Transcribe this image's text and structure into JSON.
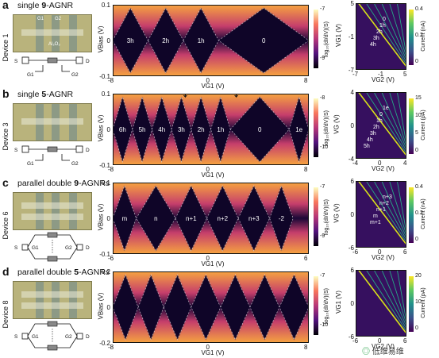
{
  "rows": [
    {
      "letter": "a",
      "title_pre": "single ",
      "title_bold": "9",
      "title_post": "-AGNR",
      "device": "Device 1",
      "sem_labels": [
        "G1",
        "G2",
        "Al₂O₃"
      ],
      "schematic": {
        "s": "S",
        "d": "D",
        "g1": "G1",
        "g2": "G2"
      },
      "map": {
        "ylabel": "V_Bias (V)",
        "xlabel": "V_G1 (V)",
        "yticks": [
          "0.1",
          "0",
          "-0.1"
        ],
        "xticks": [
          "-8",
          "0",
          "8"
        ],
        "regions": [
          "3h",
          "2h",
          "1h",
          "0"
        ],
        "cbar_ticks": [
          "-7",
          "-9"
        ],
        "cbar_label": "log₁₀(dI/dV)(S)"
      },
      "right": {
        "ylabel": "V_G1 (V)",
        "xlabel": "V_G2 (V)",
        "yticks": [
          "5",
          "-1",
          "-7"
        ],
        "xticks": [
          "-7",
          "-1",
          "5"
        ],
        "labels": [
          "0",
          "1h",
          "2h",
          "3h",
          "4h"
        ],
        "cbar_ticks": [
          "0.4",
          "0.2",
          "0"
        ],
        "cbar_label": "Current (nA)"
      }
    },
    {
      "letter": "b",
      "title_pre": "single ",
      "title_bold": "5",
      "title_post": "-AGNR",
      "device": "Device 3",
      "sem_labels": [],
      "schematic": {
        "s": "S",
        "d": "D",
        "g1": "G1",
        "g2": "G2"
      },
      "map": {
        "ylabel": "V_Bias (V)",
        "xlabel": "V_G1 (V)",
        "yticks": [
          "0.1",
          "0",
          "-0.1"
        ],
        "xticks": [
          "-8",
          "0",
          "8"
        ],
        "regions": [
          "6h",
          "5h",
          "4h",
          "3h",
          "2h",
          "1h",
          "0",
          "1e"
        ],
        "cbar_ticks": [
          "-8",
          "-10"
        ],
        "cbar_label": "log₁₀(dI/dV)(S)"
      },
      "right": {
        "ylabel": "V_G (V)",
        "xlabel": "V_G2 (V)",
        "yticks": [
          "4",
          "0",
          "-4"
        ],
        "xticks": [
          "-4",
          "0",
          "4"
        ],
        "labels": [
          "1e",
          "0",
          "1h",
          "2h",
          "3h",
          "4h",
          "5h"
        ],
        "cbar_ticks": [
          "15",
          "10",
          "5",
          "0"
        ],
        "cbar_label": "Current (pA)"
      }
    },
    {
      "letter": "c",
      "title_pre": "parallel double ",
      "title_bold": "9",
      "title_post": "-AGNRs",
      "device": "Device 6",
      "sem_labels": [],
      "schematic": {
        "s": "S",
        "d": "D",
        "g1": "G1",
        "g2": "G2"
      },
      "map": {
        "ylabel": "V_Bias (V)",
        "xlabel": "V_G1 (V)",
        "yticks": [
          "0.1",
          "0",
          "-0.1"
        ],
        "xticks": [
          "-6",
          "0",
          "6"
        ],
        "regions": [
          "m",
          "n",
          "n+1",
          "n+2",
          "n+3",
          "-2"
        ],
        "cbar_ticks": [
          "-7",
          "-9"
        ],
        "cbar_label": "log₁₀(dI/dV)(S)"
      },
      "right": {
        "ylabel": "V_G (V)",
        "xlabel": "V_G2 (V)",
        "yticks": [
          "6",
          "0",
          "-6"
        ],
        "xticks": [
          "-6",
          "0",
          "6"
        ],
        "labels": [
          "n+3",
          "n+2",
          "n+1",
          "m",
          "m+1"
        ],
        "cbar_ticks": [
          "0.4",
          "0.2",
          "0"
        ],
        "cbar_label": "Current (nA)"
      }
    },
    {
      "letter": "d",
      "title_pre": "parallel double ",
      "title_bold": "5",
      "title_post": "-AGNRs",
      "device": "Device 8",
      "sem_labels": [],
      "schematic": {
        "s": "S",
        "d": "D",
        "g1": "G1",
        "g2": "G2"
      },
      "map": {
        "ylabel": "V_Bias (V)",
        "xlabel": "V_G1 (V)",
        "yticks": [
          "0.2",
          "0",
          "-0.2"
        ],
        "xticks": [
          "-8",
          "0",
          "8"
        ],
        "regions": [],
        "cbar_ticks": [
          "-7",
          "-10"
        ],
        "cbar_label": "log₁₀(dI/dV)(S)"
      },
      "right": {
        "ylabel": "V_G1 (V)",
        "xlabel": "V_G2 (V)",
        "yticks": [
          "6",
          "0",
          "-6"
        ],
        "xticks": [
          "-6",
          "0",
          "6"
        ],
        "labels": [],
        "cbar_ticks": [
          "20",
          "10",
          "0"
        ],
        "cbar_label": "Current (pA)"
      }
    }
  ],
  "watermark": "低维易维"
}
